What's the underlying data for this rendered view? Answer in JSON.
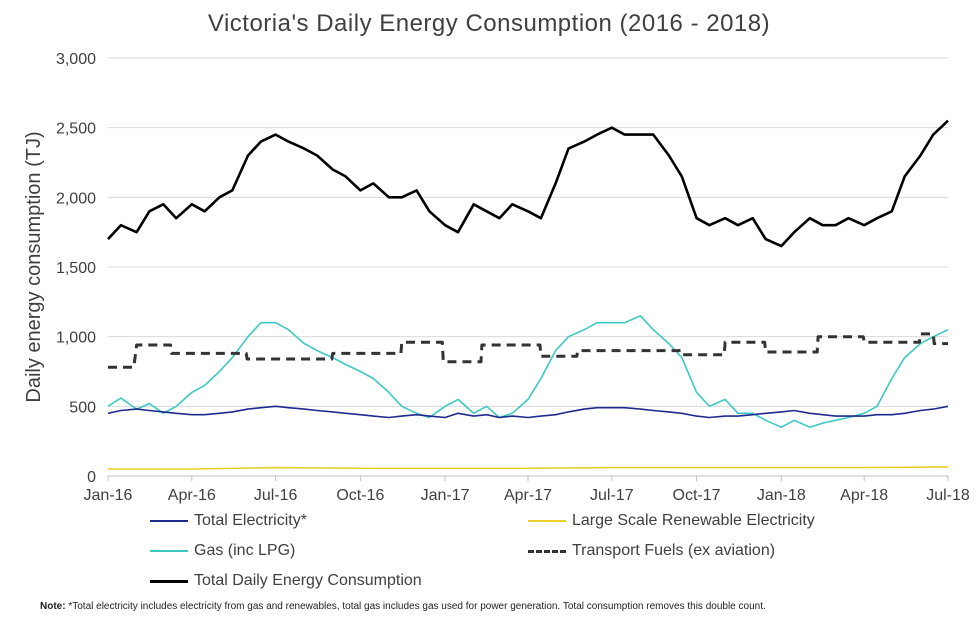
{
  "chart_data": {
    "type": "line",
    "title": "Victoria's Daily Energy Consumption (2016 - 2018)",
    "xlabel": "",
    "ylabel": "Daily energy consumption (TJ)",
    "ylim": [
      0,
      3000
    ],
    "xlim": [
      "2016-01-01",
      "2018-07-01"
    ],
    "yticks": [
      0,
      500,
      1000,
      1500,
      2000,
      2500,
      3000
    ],
    "ytick_labels": [
      "0",
      "500",
      "1,000",
      "1,500",
      "2,000",
      "2,500",
      "3,000"
    ],
    "xtick_labels": [
      "Jan-16",
      "Apr-16",
      "Jul-16",
      "Oct-16",
      "Jan-17",
      "Apr-17",
      "Jul-17",
      "Oct-17",
      "Jan-18",
      "Apr-18",
      "Jul-18"
    ],
    "xtick_dates": [
      "2016-01-01",
      "2016-04-01",
      "2016-07-01",
      "2016-10-01",
      "2017-01-01",
      "2017-04-01",
      "2017-07-01",
      "2017-10-01",
      "2018-01-01",
      "2018-04-01",
      "2018-07-01"
    ],
    "grid": "horizontal",
    "legend_position": "bottom",
    "series": [
      {
        "name": "Total Daily Energy Consumption",
        "color": "#000000",
        "style": "solid",
        "x": [
          "2016-01-01",
          "2016-01-15",
          "2016-02-01",
          "2016-02-15",
          "2016-03-01",
          "2016-03-15",
          "2016-04-01",
          "2016-04-15",
          "2016-05-01",
          "2016-05-15",
          "2016-06-01",
          "2016-06-15",
          "2016-07-01",
          "2016-07-15",
          "2016-08-01",
          "2016-08-15",
          "2016-09-01",
          "2016-09-15",
          "2016-10-01",
          "2016-10-15",
          "2016-11-01",
          "2016-11-15",
          "2016-12-01",
          "2016-12-15",
          "2017-01-01",
          "2017-01-15",
          "2017-02-01",
          "2017-02-15",
          "2017-03-01",
          "2017-03-15",
          "2017-04-01",
          "2017-04-15",
          "2017-05-01",
          "2017-05-15",
          "2017-06-01",
          "2017-06-15",
          "2017-07-01",
          "2017-07-15",
          "2017-08-01",
          "2017-08-15",
          "2017-09-01",
          "2017-09-15",
          "2017-10-01",
          "2017-10-15",
          "2017-11-01",
          "2017-11-15",
          "2017-12-01",
          "2017-12-15",
          "2018-01-01",
          "2018-01-15",
          "2018-02-01",
          "2018-02-15",
          "2018-03-01",
          "2018-03-15",
          "2018-04-01",
          "2018-04-15",
          "2018-05-01",
          "2018-05-15",
          "2018-06-01",
          "2018-06-15",
          "2018-07-01"
        ],
        "values": [
          1700,
          1800,
          1750,
          1900,
          1950,
          1850,
          1950,
          1900,
          2000,
          2050,
          2300,
          2400,
          2450,
          2400,
          2350,
          2300,
          2200,
          2150,
          2050,
          2100,
          2000,
          2000,
          2050,
          1900,
          1800,
          1750,
          1950,
          1900,
          1850,
          1950,
          1900,
          1850,
          2100,
          2350,
          2400,
          2450,
          2500,
          2450,
          2450,
          2450,
          2300,
          2150,
          1850,
          1800,
          1850,
          1800,
          1850,
          1700,
          1650,
          1750,
          1850,
          1800,
          1800,
          1850,
          1800,
          1850,
          1900,
          2150,
          2300,
          2450,
          2550
        ]
      },
      {
        "name": "Gas (inc LPG)",
        "color": "#3cc9c2",
        "style": "solid",
        "x": [
          "2016-01-01",
          "2016-01-15",
          "2016-02-01",
          "2016-02-15",
          "2016-03-01",
          "2016-03-15",
          "2016-04-01",
          "2016-04-15",
          "2016-05-01",
          "2016-05-15",
          "2016-06-01",
          "2016-06-15",
          "2016-07-01",
          "2016-07-15",
          "2016-08-01",
          "2016-08-15",
          "2016-09-01",
          "2016-09-15",
          "2016-10-01",
          "2016-10-15",
          "2016-11-01",
          "2016-11-15",
          "2016-12-01",
          "2016-12-15",
          "2017-01-01",
          "2017-01-15",
          "2017-02-01",
          "2017-02-15",
          "2017-03-01",
          "2017-03-15",
          "2017-04-01",
          "2017-04-15",
          "2017-05-01",
          "2017-05-15",
          "2017-06-01",
          "2017-06-15",
          "2017-07-01",
          "2017-07-15",
          "2017-08-01",
          "2017-08-15",
          "2017-09-01",
          "2017-09-15",
          "2017-10-01",
          "2017-10-15",
          "2017-11-01",
          "2017-11-15",
          "2017-12-01",
          "2017-12-15",
          "2018-01-01",
          "2018-01-15",
          "2018-02-01",
          "2018-02-15",
          "2018-03-01",
          "2018-03-15",
          "2018-04-01",
          "2018-04-15",
          "2018-05-01",
          "2018-05-15",
          "2018-06-01",
          "2018-06-15",
          "2018-07-01"
        ],
        "values": [
          500,
          560,
          480,
          520,
          450,
          500,
          600,
          650,
          750,
          850,
          1000,
          1100,
          1100,
          1050,
          950,
          900,
          850,
          800,
          750,
          700,
          600,
          500,
          450,
          420,
          500,
          550,
          450,
          500,
          420,
          450,
          550,
          700,
          900,
          1000,
          1050,
          1100,
          1100,
          1100,
          1150,
          1050,
          950,
          850,
          600,
          500,
          550,
          450,
          450,
          400,
          350,
          400,
          350,
          380,
          400,
          420,
          450,
          500,
          700,
          850,
          950,
          1000,
          1050
        ]
      },
      {
        "name": "Transport Fuels (ex aviation)",
        "color": "#333333",
        "style": "dashed",
        "x": [
          "2016-01-01",
          "2016-01-29",
          "2016-02-01",
          "2016-03-09",
          "2016-03-10",
          "2016-05-30",
          "2016-05-31",
          "2016-08-31",
          "2016-09-01",
          "2016-11-14",
          "2016-11-15",
          "2016-12-29",
          "2016-12-30",
          "2017-02-09",
          "2017-02-10",
          "2017-04-14",
          "2017-04-15",
          "2017-05-24",
          "2017-05-25",
          "2017-09-14",
          "2017-09-15",
          "2017-10-31",
          "2017-11-01",
          "2017-12-14",
          "2017-12-15",
          "2018-02-09",
          "2018-02-10",
          "2018-03-31",
          "2018-04-01",
          "2018-05-31",
          "2018-06-01",
          "2018-06-15",
          "2018-06-16",
          "2018-07-01"
        ],
        "values": [
          780,
          780,
          940,
          940,
          880,
          880,
          840,
          840,
          880,
          880,
          960,
          960,
          820,
          820,
          940,
          940,
          860,
          860,
          900,
          900,
          870,
          870,
          960,
          960,
          890,
          890,
          1000,
          1000,
          960,
          960,
          1020,
          1020,
          950,
          950
        ]
      },
      {
        "name": "Total Electricity*",
        "color": "#1f2b8c",
        "style": "solid",
        "x": [
          "2016-01-01",
          "2016-01-15",
          "2016-02-01",
          "2016-02-15",
          "2016-03-01",
          "2016-03-15",
          "2016-04-01",
          "2016-04-15",
          "2016-05-01",
          "2016-05-15",
          "2016-06-01",
          "2016-06-15",
          "2016-07-01",
          "2016-07-15",
          "2016-08-01",
          "2016-08-15",
          "2016-09-01",
          "2016-09-15",
          "2016-10-01",
          "2016-10-15",
          "2016-11-01",
          "2016-11-15",
          "2016-12-01",
          "2016-12-15",
          "2017-01-01",
          "2017-01-15",
          "2017-02-01",
          "2017-02-15",
          "2017-03-01",
          "2017-03-15",
          "2017-04-01",
          "2017-04-15",
          "2017-05-01",
          "2017-05-15",
          "2017-06-01",
          "2017-06-15",
          "2017-07-01",
          "2017-07-15",
          "2017-08-01",
          "2017-08-15",
          "2017-09-01",
          "2017-09-15",
          "2017-10-01",
          "2017-10-15",
          "2017-11-01",
          "2017-11-15",
          "2017-12-01",
          "2017-12-15",
          "2018-01-01",
          "2018-01-15",
          "2018-02-01",
          "2018-02-15",
          "2018-03-01",
          "2018-03-15",
          "2018-04-01",
          "2018-04-15",
          "2018-05-01",
          "2018-05-15",
          "2018-06-01",
          "2018-06-15",
          "2018-07-01"
        ],
        "values": [
          450,
          470,
          480,
          470,
          460,
          450,
          440,
          440,
          450,
          460,
          480,
          490,
          500,
          490,
          480,
          470,
          460,
          450,
          440,
          430,
          420,
          430,
          440,
          430,
          420,
          450,
          430,
          440,
          420,
          430,
          420,
          430,
          440,
          460,
          480,
          490,
          490,
          490,
          480,
          470,
          460,
          450,
          430,
          420,
          430,
          430,
          440,
          450,
          460,
          470,
          450,
          440,
          430,
          430,
          430,
          440,
          440,
          450,
          470,
          480,
          500
        ]
      },
      {
        "name": "Large Scale Renewable Electricity",
        "color": "#e8cf2c",
        "style": "solid",
        "x": [
          "2016-01-01",
          "2016-04-01",
          "2016-07-01",
          "2016-10-01",
          "2017-01-01",
          "2017-04-01",
          "2017-07-01",
          "2017-10-01",
          "2018-01-01",
          "2018-04-01",
          "2018-07-01"
        ],
        "values": [
          50,
          50,
          60,
          55,
          55,
          55,
          60,
          60,
          60,
          60,
          65
        ]
      }
    ]
  },
  "legend": {
    "items": [
      {
        "label": "Total Electricity*",
        "color": "#1f2b8c",
        "style": "solid"
      },
      {
        "label": "Large Scale Renewable Electricity",
        "color": "#e8cf2c",
        "style": "solid"
      },
      {
        "label": "Gas (inc LPG)",
        "color": "#3cc9c2",
        "style": "solid"
      },
      {
        "label": "Transport Fuels (ex aviation)",
        "color": "#333333",
        "style": "dashed"
      },
      {
        "label": "Total Daily Energy Consumption",
        "color": "#000000",
        "style": "solid"
      }
    ]
  },
  "note": {
    "label": "Note:",
    "text": " *Total electricity includes electricity from gas and renewables, total gas includes gas used for power generation. Total consumption removes this double count."
  }
}
